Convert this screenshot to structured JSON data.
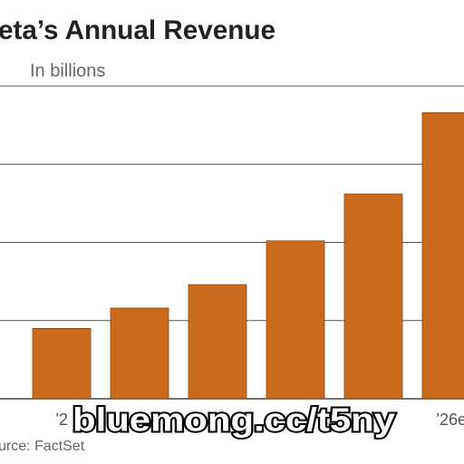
{
  "chart_data": {
    "type": "bar",
    "title": "eta’s Annual Revenue",
    "subtitle": "In billions",
    "source": "urce: FactSet",
    "watermark": "bluemong.cc/t5ny",
    "categories": [
      "’2",
      null,
      null,
      null,
      null,
      "’26e"
    ],
    "values": [
      45,
      58,
      73,
      101,
      131,
      183
    ],
    "color": "#c96a1c",
    "ylim": [
      0,
      200
    ],
    "yticks": [
      0,
      50,
      100,
      150,
      200
    ],
    "grid": true
  }
}
